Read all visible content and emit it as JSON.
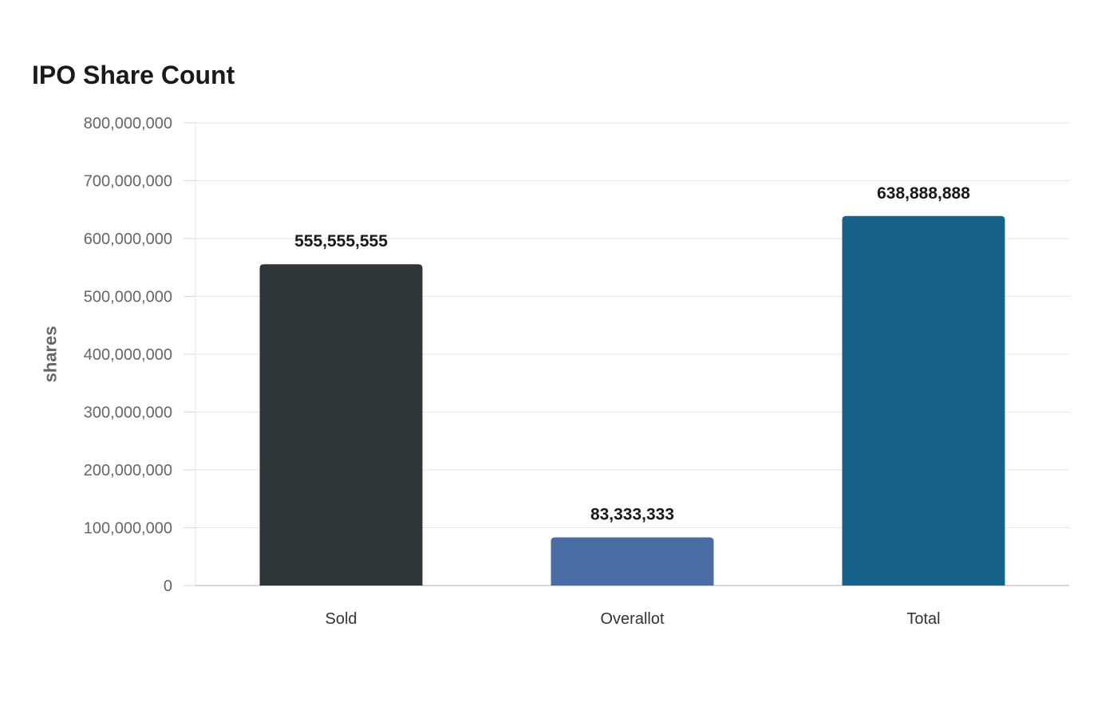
{
  "chart_data": {
    "type": "bar",
    "title": "IPO Share Count",
    "xlabel": "",
    "ylabel": "shares",
    "categories": [
      "Sold",
      "Overallot",
      "Total"
    ],
    "values": [
      555555555,
      83333333,
      638888888
    ],
    "data_labels": [
      "555,555,555",
      "83,333,333",
      "638,888,888"
    ],
    "colors": [
      "#2e3538",
      "#4a6ea3",
      "#186289"
    ],
    "ylim": [
      0,
      800000000
    ],
    "yticks": [
      0,
      100000000,
      200000000,
      300000000,
      400000000,
      500000000,
      600000000,
      700000000,
      800000000
    ],
    "ytick_labels": [
      "0",
      "100,000,000",
      "200,000,000",
      "300,000,000",
      "400,000,000",
      "500,000,000",
      "600,000,000",
      "700,000,000",
      "800,000,000"
    ],
    "grid": true,
    "legend": "none"
  }
}
